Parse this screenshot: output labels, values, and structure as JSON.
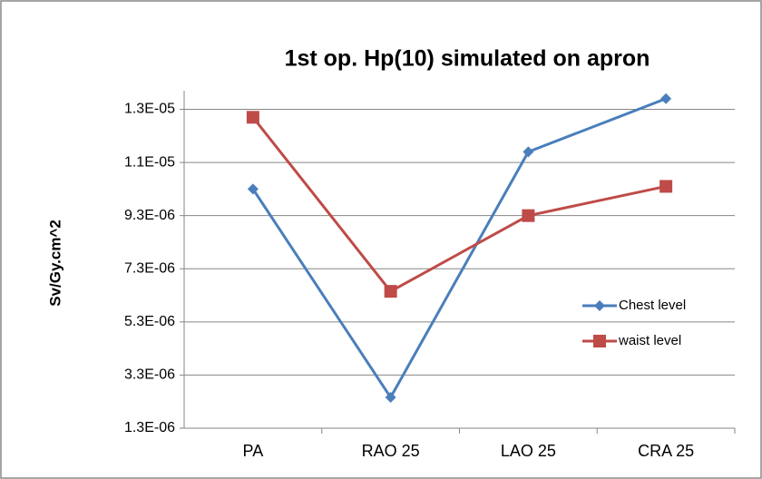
{
  "chart_data": {
    "type": "line",
    "title": "1st op. Hp(10) simulated on apron",
    "y_label": "Sv/Gy.cm^2",
    "categories": [
      "PA",
      "RAO 25",
      "LAO 25",
      "CRA 25"
    ],
    "series": [
      {
        "name": "Chest level",
        "color": "#4a7ebb",
        "marker": "diamond",
        "values": [
          1.03e-05,
          2.46e-06,
          1.17e-05,
          1.37e-05
        ]
      },
      {
        "name": "waist level",
        "color": "#be4b48",
        "marker": "square",
        "values": [
          1.3e-05,
          6.45e-06,
          9.3e-06,
          1.04e-05
        ]
      }
    ],
    "ylim": [
      1.3e-06,
      1.4e-05
    ],
    "yticks": [
      {
        "value": 1.3e-06,
        "label": "1.3E-06"
      },
      {
        "value": 3.3e-06,
        "label": "3.3E-06"
      },
      {
        "value": 5.3e-06,
        "label": "5.3E-06"
      },
      {
        "value": 7.3e-06,
        "label": "7.3E-06"
      },
      {
        "value": 9.3e-06,
        "label": "9.3E-06"
      },
      {
        "value": 1.13e-05,
        "label": "1.1E-05"
      },
      {
        "value": 1.33e-05,
        "label": "1.3E-05"
      }
    ],
    "grid": true,
    "legend": "right"
  }
}
